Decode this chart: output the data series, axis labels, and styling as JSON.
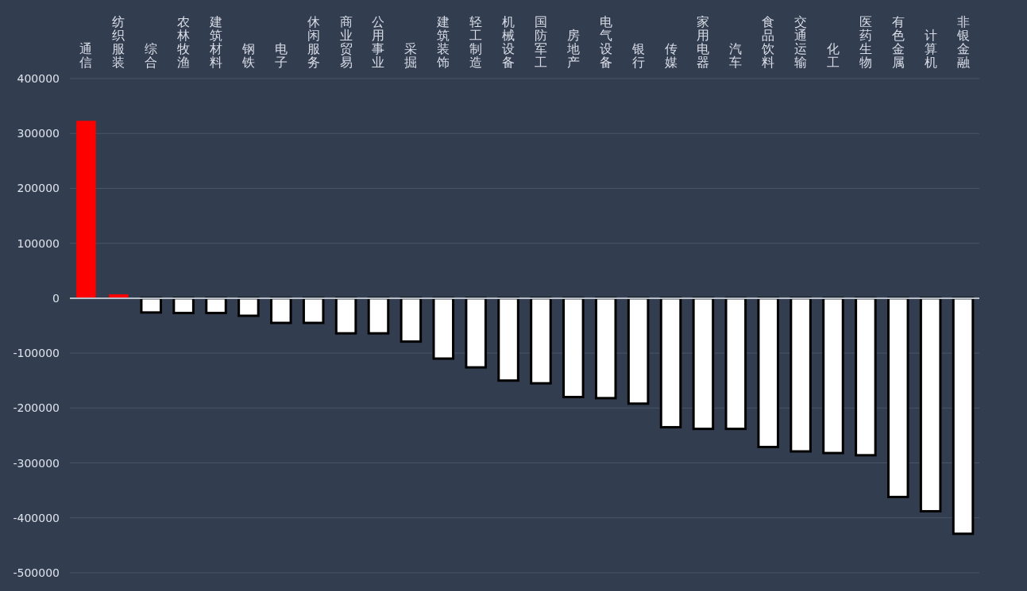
{
  "chart_data": {
    "type": "bar",
    "categories": [
      "通信",
      "纺织服装",
      "综合",
      "农林牧渔",
      "建筑材料",
      "钢铁",
      "电子",
      "休闲服务",
      "商业贸易",
      "公用事业",
      "采掘",
      "建筑装饰",
      "轻工制造",
      "机械设备",
      "国防军工",
      "房地产",
      "电气设备",
      "银行",
      "传媒",
      "家用电器",
      "汽车",
      "食品饮料",
      "交通运输",
      "化工",
      "医药生物",
      "有色金属",
      "计算机",
      "非银金融"
    ],
    "values": [
      323000,
      7000,
      -26000,
      -27000,
      -27000,
      -32000,
      -45000,
      -45000,
      -64000,
      -64000,
      -79000,
      -110000,
      -126000,
      -150000,
      -155000,
      -180000,
      -182000,
      -192000,
      -235000,
      -238000,
      -238000,
      -271000,
      -279000,
      -282000,
      -286000,
      -362000,
      -388000,
      -429000
    ],
    "colors": [
      "#ff0000",
      "#ff0000",
      "#ffffff",
      "#ffffff",
      "#ffffff",
      "#ffffff",
      "#ffffff",
      "#ffffff",
      "#ffffff",
      "#ffffff",
      "#ffffff",
      "#ffffff",
      "#ffffff",
      "#ffffff",
      "#ffffff",
      "#ffffff",
      "#ffffff",
      "#ffffff",
      "#ffffff",
      "#ffffff",
      "#ffffff",
      "#ffffff",
      "#ffffff",
      "#ffffff",
      "#ffffff",
      "#ffffff",
      "#ffffff",
      "#ffffff"
    ],
    "ylim": [
      -500000,
      400000
    ],
    "yticks": [
      -500000,
      -400000,
      -300000,
      -200000,
      -100000,
      0,
      100000,
      200000,
      300000,
      400000
    ],
    "grid": "y"
  }
}
